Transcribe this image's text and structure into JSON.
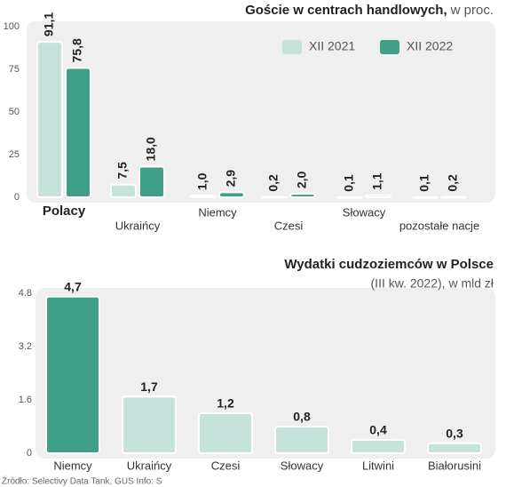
{
  "chart_data": [
    {
      "type": "bar",
      "title": "Goście w centrach handlowych,",
      "unit": "w proc.",
      "categories": [
        "Polacy",
        "Ukraińcy",
        "Niemcy",
        "Czesi",
        "Słowacy",
        "pozostałe nacje"
      ],
      "series": [
        {
          "name": "XII 2021",
          "color": "#c5e3da",
          "values": [
            91.1,
            7.5,
            1.0,
            0.2,
            0.1,
            0.1
          ],
          "value_labels": [
            "91,1",
            "7,5",
            "1,0",
            "0,2",
            "0,1",
            "0,1"
          ]
        },
        {
          "name": "XII 2022",
          "color": "#3f9f87",
          "values": [
            75.8,
            18.0,
            2.9,
            2.0,
            1.1,
            0.2
          ],
          "value_labels": [
            "75,8",
            "18,0",
            "2,9",
            "2,0",
            "1,1",
            "0,2"
          ]
        }
      ],
      "ylim": [
        0,
        100
      ],
      "yticks": [
        0,
        25,
        50,
        75,
        100
      ],
      "grid": false,
      "legend": "top-right"
    },
    {
      "type": "bar",
      "title": "Wydatki cudzoziemców w Polsce",
      "subtitle": "(III kw. 2022), w mld zł",
      "categories": [
        "Niemcy",
        "Ukraińcy",
        "Czesi",
        "Słowacy",
        "Litwini",
        "Białorusini"
      ],
      "values": [
        4.7,
        1.7,
        1.2,
        0.8,
        0.4,
        0.3
      ],
      "value_labels": [
        "4,7",
        "1,7",
        "1,2",
        "0,8",
        "0,4",
        "0,3"
      ],
      "colors": [
        "#3f9f87",
        "#c5e3da",
        "#c5e3da",
        "#c5e3da",
        "#c5e3da",
        "#c5e3da"
      ],
      "ylim": [
        0,
        4.8
      ],
      "yticks": [
        0,
        1.6,
        3.2,
        4.8
      ],
      "grid": false,
      "source": "Źródło: Selectivy Data Tank, GUS  Info: S"
    }
  ]
}
